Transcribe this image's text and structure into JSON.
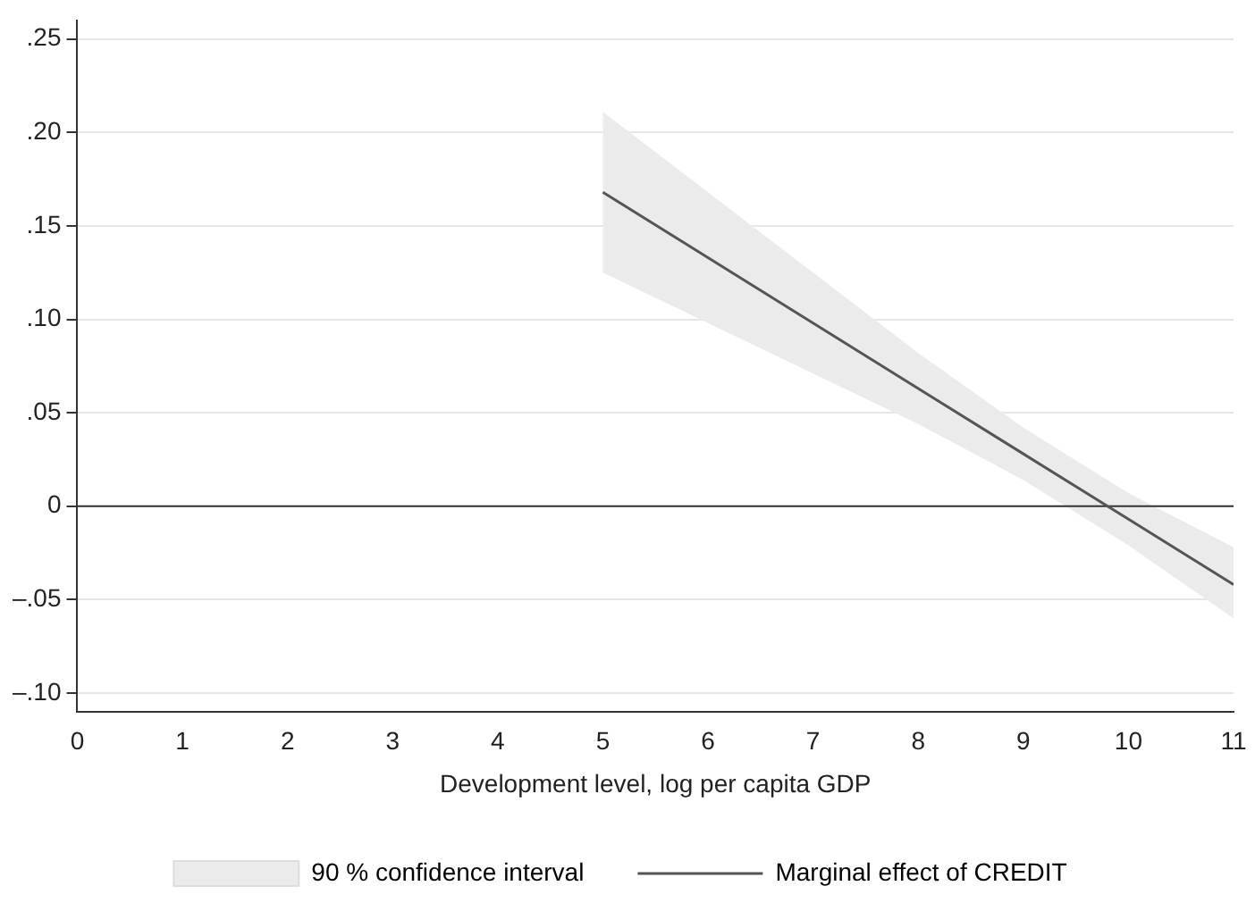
{
  "chart_data": {
    "type": "line",
    "xlabel": "Development level, log per capita GDP",
    "xlim": [
      0,
      11
    ],
    "xticks": [
      0,
      1,
      2,
      3,
      4,
      5,
      6,
      7,
      8,
      9,
      10,
      11
    ],
    "ylim": [
      -0.11,
      0.26
    ],
    "yticks": [
      {
        "value": 0.25,
        "label": ".25"
      },
      {
        "value": 0.2,
        "label": ".20"
      },
      {
        "value": 0.15,
        "label": ".15"
      },
      {
        "value": 0.1,
        "label": ".10"
      },
      {
        "value": 0.05,
        "label": ".05"
      },
      0,
      {
        "value": -0.05,
        "label": "–.05"
      },
      {
        "value": -0.1,
        "label": "–.10"
      }
    ],
    "grid": "y",
    "legend": "bottom",
    "marker": "none",
    "ref_lines": [
      {
        "axis": "y",
        "value": 0,
        "color": "#333333"
      }
    ],
    "series": [
      {
        "name": "90 % confidence interval",
        "type": "area",
        "color": "#ebebeb"
      },
      {
        "name": "Marginal effect of CREDIT",
        "color": "#555555",
        "line_style": "solid",
        "x": [
          5,
          6,
          7,
          8,
          9,
          10,
          11
        ],
        "values": [
          0.168,
          0.133,
          0.098,
          0.063,
          0.028,
          -0.007,
          -0.042
        ],
        "lower": [
          0.125,
          0.098,
          0.071,
          0.044,
          0.014,
          -0.021,
          -0.06
        ],
        "upper": [
          0.211,
          0.168,
          0.125,
          0.082,
          0.042,
          0.007,
          -0.022
        ]
      }
    ]
  }
}
